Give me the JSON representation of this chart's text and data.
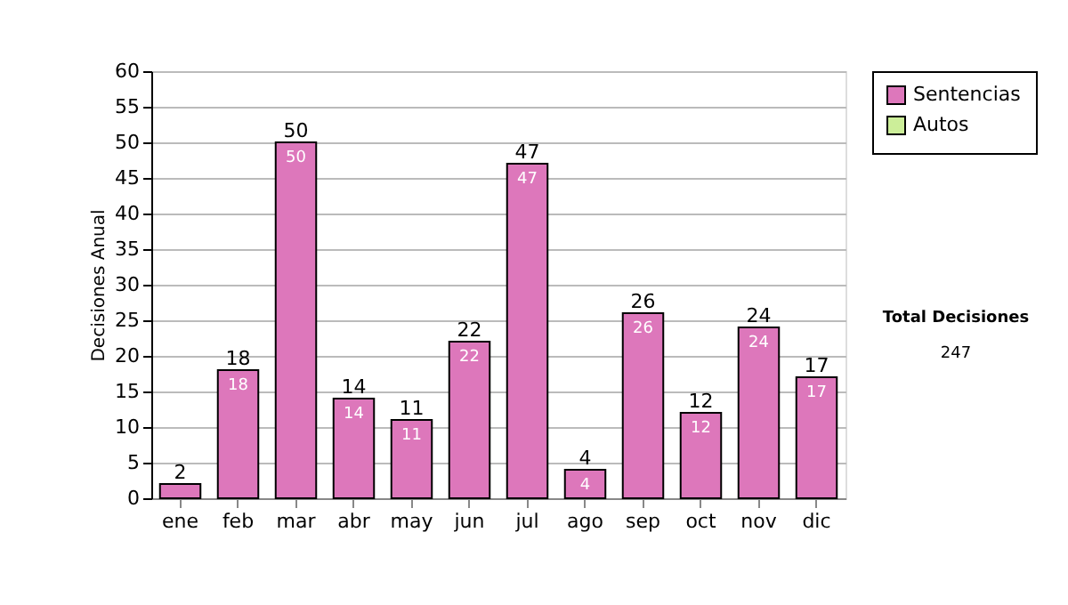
{
  "chart_data": {
    "type": "bar",
    "stacked": true,
    "ylabel": "Decisiones Anual",
    "categories": [
      "ene",
      "feb",
      "mar",
      "abr",
      "may",
      "jun",
      "jul",
      "ago",
      "sep",
      "oct",
      "nov",
      "dic"
    ],
    "series": [
      {
        "name": "Sentencias",
        "color": "#dd77bb",
        "values": [
          2,
          18,
          50,
          14,
          11,
          22,
          47,
          4,
          26,
          12,
          24,
          17
        ],
        "value_labels": [
          null,
          "18",
          "50",
          "14",
          "11",
          "22",
          "47",
          "4",
          "26",
          "12",
          "24",
          "17"
        ]
      },
      {
        "name": "Autos",
        "color": "#ccee99",
        "values": [
          0,
          0,
          0,
          0,
          0,
          0,
          0,
          0,
          0,
          0,
          0,
          0
        ]
      }
    ],
    "totals": [
      "2",
      "18",
      "50",
      "14",
      "11",
      "22",
      "47",
      "4",
      "26",
      "12",
      "24",
      "17"
    ],
    "ylim": [
      0,
      60
    ],
    "yticks": [
      0,
      5,
      10,
      15,
      20,
      25,
      30,
      35,
      40,
      45,
      50,
      55,
      60
    ],
    "grid": "y",
    "legend": "right",
    "annotations": [
      "Total Decisiones",
      "247"
    ]
  }
}
